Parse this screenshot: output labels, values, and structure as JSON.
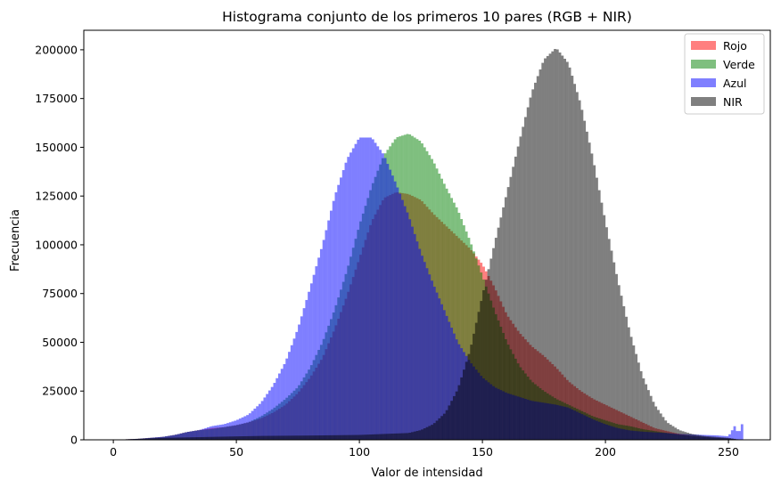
{
  "chart_data": {
    "type": "histogram",
    "title": "Histograma conjunto de los primeros 10 pares (RGB + NIR)",
    "xlabel": "Valor de intensidad",
    "ylabel": "Frecuencia",
    "xlim": [
      -12,
      267
    ],
    "ylim": [
      0,
      210000
    ],
    "xticks": [
      0,
      50,
      100,
      150,
      200,
      250
    ],
    "yticks": [
      0,
      25000,
      50000,
      75000,
      100000,
      125000,
      150000,
      175000,
      200000
    ],
    "grid": false,
    "legend_position": "top-right",
    "bin_width": 1,
    "series": [
      {
        "name": "Rojo",
        "color": "#ff0000",
        "alpha": 0.5,
        "x": [
          0,
          10,
          20,
          25,
          30,
          35,
          40,
          45,
          50,
          55,
          60,
          65,
          70,
          75,
          80,
          85,
          90,
          95,
          100,
          105,
          110,
          115,
          120,
          125,
          130,
          135,
          140,
          145,
          150,
          155,
          160,
          165,
          170,
          175,
          180,
          185,
          190,
          195,
          200,
          205,
          210,
          215,
          220,
          225,
          230,
          235,
          240,
          245,
          250,
          255
        ],
        "values": [
          0,
          500,
          1500,
          2500,
          4000,
          5000,
          6000,
          6500,
          7500,
          9000,
          11000,
          14000,
          18000,
          24000,
          32000,
          42000,
          57000,
          74000,
          93000,
          112000,
          124000,
          127000,
          126000,
          123000,
          116000,
          110000,
          104000,
          98000,
          90000,
          78000,
          64000,
          55000,
          48000,
          43000,
          37000,
          30000,
          25000,
          21000,
          18000,
          15000,
          12000,
          9000,
          6000,
          4500,
          3000,
          2000,
          1500,
          1000,
          700,
          0
        ]
      },
      {
        "name": "Verde",
        "color": "#008000",
        "alpha": 0.5,
        "x": [
          0,
          10,
          20,
          25,
          30,
          35,
          40,
          45,
          50,
          55,
          60,
          65,
          70,
          75,
          80,
          85,
          90,
          95,
          100,
          105,
          110,
          115,
          120,
          125,
          130,
          135,
          140,
          145,
          150,
          155,
          160,
          165,
          170,
          175,
          180,
          185,
          190,
          195,
          200,
          205,
          210,
          215,
          220,
          225,
          230,
          235,
          240,
          245,
          250,
          255
        ],
        "values": [
          0,
          500,
          1500,
          2500,
          4000,
          5000,
          5500,
          6500,
          7500,
          9000,
          12000,
          16000,
          21000,
          27000,
          37000,
          50000,
          67000,
          87000,
          110000,
          130000,
          146000,
          155000,
          157000,
          153000,
          143000,
          130000,
          118000,
          102000,
          84000,
          66000,
          50000,
          38000,
          30000,
          25000,
          21000,
          18000,
          15000,
          12000,
          10000,
          8000,
          7000,
          5500,
          4500,
          3500,
          2500,
          2000,
          1500,
          1000,
          700,
          0
        ]
      },
      {
        "name": "Azul",
        "color": "#0000ff",
        "alpha": 0.5,
        "x": [
          0,
          10,
          20,
          25,
          30,
          35,
          40,
          45,
          50,
          55,
          60,
          65,
          70,
          75,
          80,
          85,
          90,
          95,
          100,
          105,
          110,
          115,
          120,
          125,
          130,
          135,
          140,
          145,
          150,
          155,
          160,
          165,
          170,
          175,
          180,
          185,
          190,
          195,
          200,
          205,
          210,
          215,
          220,
          225,
          230,
          235,
          240,
          245,
          250,
          253,
          254,
          255
        ],
        "values": [
          0,
          500,
          1500,
          2500,
          4000,
          5000,
          7000,
          8000,
          10000,
          13000,
          19000,
          28000,
          40000,
          57000,
          78000,
          100000,
          125000,
          144000,
          155000,
          155000,
          146000,
          131000,
          115000,
          96000,
          80000,
          65000,
          50000,
          40000,
          32000,
          27000,
          24000,
          22000,
          20000,
          19000,
          18000,
          16500,
          13500,
          10500,
          8000,
          6000,
          4800,
          4200,
          3800,
          3500,
          3000,
          2800,
          2500,
          2300,
          1800,
          8000,
          1000,
          8000
        ]
      },
      {
        "name": "NIR",
        "color": "#000000",
        "alpha": 0.5,
        "x": [
          0,
          20,
          40,
          60,
          80,
          100,
          110,
          120,
          125,
          130,
          135,
          140,
          145,
          150,
          155,
          160,
          165,
          170,
          175,
          180,
          185,
          190,
          195,
          200,
          205,
          210,
          215,
          220,
          225,
          230,
          235,
          240,
          245,
          250,
          255
        ],
        "values": [
          0,
          1000,
          1500,
          2000,
          2200,
          2500,
          3000,
          3500,
          5000,
          8000,
          14000,
          26000,
          46000,
          74000,
          101000,
          127000,
          153000,
          178000,
          195000,
          201000,
          193000,
          172000,
          144000,
          112000,
          82000,
          55000,
          33000,
          18000,
          9000,
          5000,
          3000,
          2000,
          1500,
          1000,
          0
        ]
      }
    ]
  }
}
